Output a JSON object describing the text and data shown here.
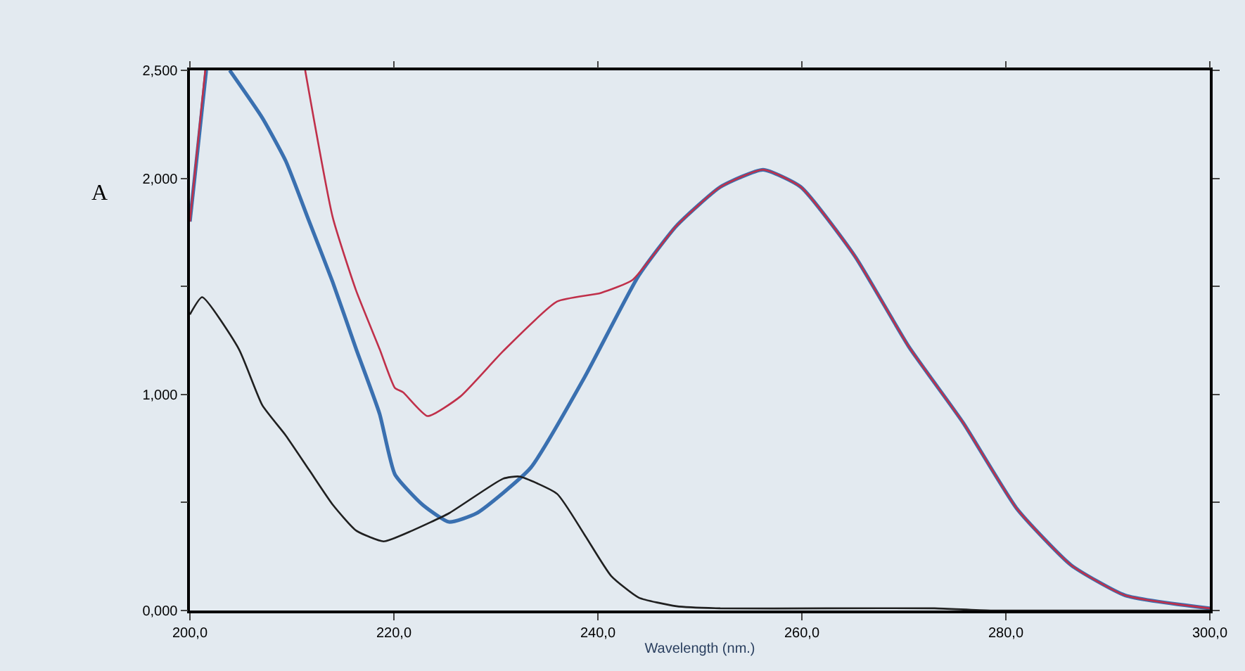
{
  "chart_data": {
    "type": "line",
    "xlabel": "Wavelength (nm.)",
    "annotations": [
      "A"
    ],
    "xlim": [
      200,
      300
    ],
    "ylim": [
      0,
      2.5
    ],
    "xticks": [
      {
        "value": 200,
        "label": "200,0"
      },
      {
        "value": 220,
        "label": "220,0"
      },
      {
        "value": 240,
        "label": "240,0"
      },
      {
        "value": 260,
        "label": "260,0"
      },
      {
        "value": 280,
        "label": "280,0"
      },
      {
        "value": 300,
        "label": "300,0"
      }
    ],
    "yticks": [
      {
        "value": 0,
        "label": "0,000"
      },
      {
        "value": 0.5,
        "label": null
      },
      {
        "value": 1,
        "label": "1,000"
      },
      {
        "value": 1.5,
        "label": null
      },
      {
        "value": 2,
        "label": "2,000"
      },
      {
        "value": 2.5,
        "label": "2,500"
      }
    ],
    "marker": "none",
    "line_style": "solid",
    "series": [
      {
        "color": "#c0304a",
        "x": [
          200,
          201.5,
          202,
          211,
          211.3,
          214,
          216.3,
          218.6,
          220.1,
          220.9,
          223.3,
          226.5,
          230.7,
          236,
          240.3,
          243.4,
          247.7,
          252,
          256.2,
          259.9,
          265.2,
          270.5,
          275.8,
          281.1,
          286.4,
          291.7,
          300
        ],
        "values": [
          1.8,
          2.5,
          null,
          null,
          2.5,
          1.82,
          1.48,
          1.21,
          1.03,
          1.01,
          0.9,
          0.99,
          1.2,
          1.43,
          1.47,
          1.53,
          1.78,
          1.96,
          2.04,
          1.96,
          1.64,
          1.22,
          0.87,
          0.47,
          0.21,
          0.07,
          0.01
        ]
      },
      {
        "color": "#3a70b0",
        "x": [
          200,
          201.6,
          202,
          203.5,
          203.9,
          207.1,
          209.4,
          211.7,
          214,
          216.3,
          218.6,
          220.1,
          222.8,
          225.4,
          228.1,
          233.4,
          238.7,
          244,
          247.7,
          252,
          256.2,
          259.9,
          265.2,
          270.5,
          275.8,
          281.1,
          286.4,
          291.7,
          300
        ],
        "values": [
          1.8,
          2.5,
          null,
          null,
          2.5,
          2.28,
          2.08,
          1.8,
          1.52,
          1.21,
          0.91,
          0.63,
          0.49,
          0.41,
          0.45,
          0.66,
          1.08,
          1.55,
          1.78,
          1.96,
          2.04,
          1.96,
          1.64,
          1.22,
          0.87,
          0.47,
          0.21,
          0.07,
          0.01
        ]
      },
      {
        "color": "#202020",
        "x": [
          200,
          201.2,
          204.8,
          207.1,
          209.4,
          211.7,
          214,
          216.3,
          219,
          221.8,
          225.4,
          230.7,
          232.3,
          236,
          238.7,
          241.3,
          244,
          247.7,
          252,
          262.5,
          273,
          278.5,
          300
        ],
        "values": [
          1.37,
          1.45,
          1.21,
          0.95,
          0.81,
          0.65,
          0.49,
          0.37,
          0.32,
          0.37,
          0.45,
          0.61,
          0.62,
          0.54,
          0.35,
          0.16,
          0.06,
          0.02,
          0.01,
          0.01,
          0.01,
          0,
          0
        ]
      }
    ]
  }
}
